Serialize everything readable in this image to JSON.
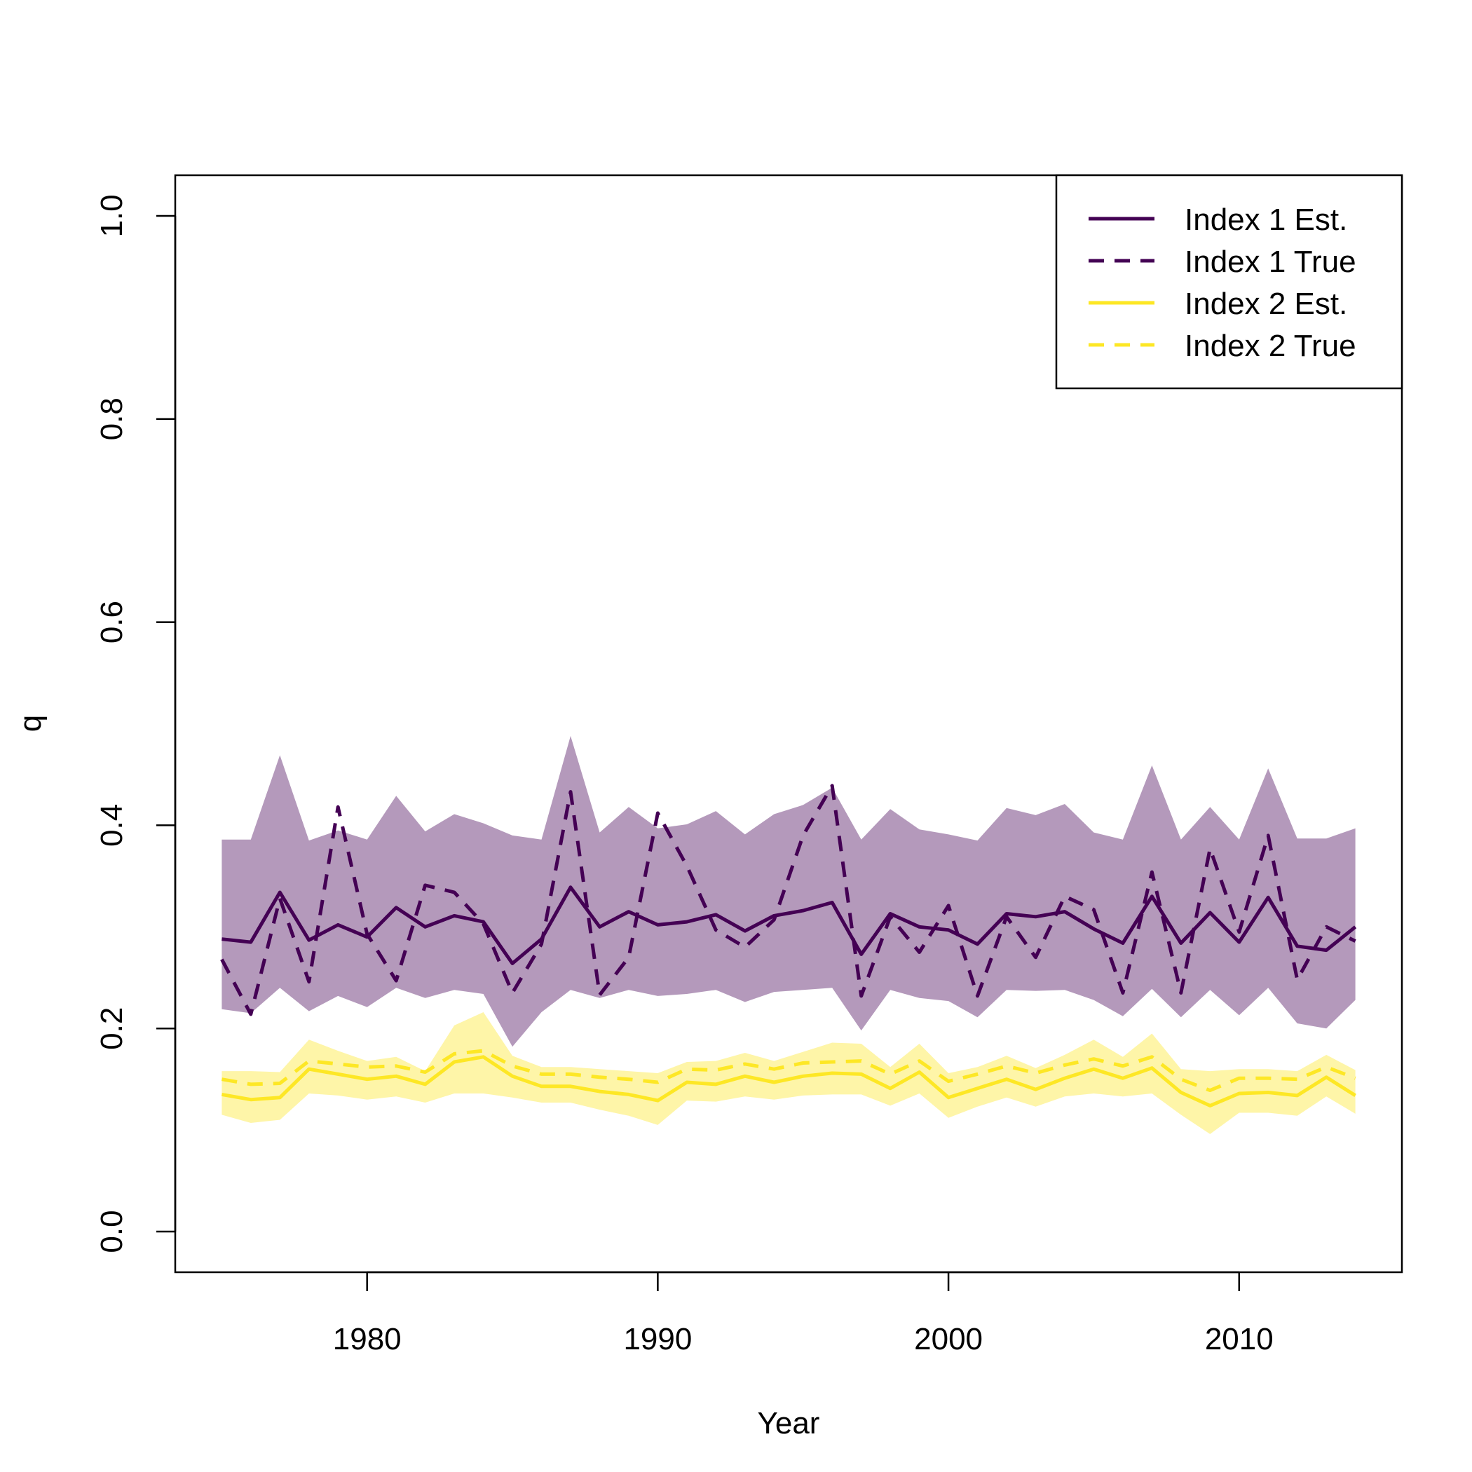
{
  "chart_data": {
    "type": "line",
    "xlabel": "Year",
    "ylabel": "q",
    "xlim": [
      1973.4,
      2015.6
    ],
    "ylim": [
      -0.04,
      1.04
    ],
    "x_ticks": [
      "1980",
      "1990",
      "2000",
      "2010"
    ],
    "y_ticks": [
      "0.0",
      "0.2",
      "0.4",
      "0.6",
      "0.8",
      "1.0"
    ],
    "legend_position": "top-right",
    "x": [
      1975,
      1976,
      1977,
      1978,
      1979,
      1980,
      1981,
      1982,
      1983,
      1984,
      1985,
      1986,
      1987,
      1988,
      1989,
      1990,
      1991,
      1992,
      1993,
      1994,
      1995,
      1996,
      1997,
      1998,
      1999,
      2000,
      2001,
      2002,
      2003,
      2004,
      2005,
      2006,
      2007,
      2008,
      2009,
      2010,
      2011,
      2012,
      2013,
      2014
    ],
    "series": [
      {
        "name": "Index 1 Est.",
        "color": "#440154",
        "dash": "solid",
        "values": [
          0.288,
          0.285,
          0.334,
          0.287,
          0.302,
          0.29,
          0.319,
          0.3,
          0.311,
          0.305,
          0.264,
          0.288,
          0.339,
          0.3,
          0.315,
          0.302,
          0.305,
          0.312,
          0.296,
          0.311,
          0.316,
          0.324,
          0.273,
          0.313,
          0.3,
          0.297,
          0.283,
          0.313,
          0.31,
          0.315,
          0.298,
          0.284,
          0.33,
          0.284,
          0.314,
          0.285,
          0.329,
          0.281,
          0.277,
          0.3
        ]
      },
      {
        "name": "Index 1 True",
        "color": "#440154",
        "dash": "dashed",
        "values": [
          0.268,
          0.214,
          0.328,
          0.246,
          0.418,
          0.293,
          0.247,
          0.341,
          0.334,
          0.303,
          0.235,
          0.283,
          0.433,
          0.233,
          0.27,
          0.412,
          0.36,
          0.297,
          0.28,
          0.307,
          0.39,
          0.439,
          0.232,
          0.31,
          0.275,
          0.321,
          0.232,
          0.31,
          0.27,
          0.33,
          0.317,
          0.235,
          0.354,
          0.235,
          0.377,
          0.295,
          0.39,
          0.248,
          0.3,
          0.286
        ]
      },
      {
        "name": "Index 2 Est.",
        "color": "#FDE725",
        "dash": "solid",
        "values": [
          0.135,
          0.13,
          0.132,
          0.16,
          0.155,
          0.15,
          0.153,
          0.145,
          0.167,
          0.172,
          0.153,
          0.143,
          0.143,
          0.138,
          0.135,
          0.129,
          0.147,
          0.145,
          0.153,
          0.147,
          0.153,
          0.156,
          0.155,
          0.141,
          0.157,
          0.132,
          0.141,
          0.15,
          0.14,
          0.151,
          0.16,
          0.151,
          0.161,
          0.137,
          0.124,
          0.136,
          0.137,
          0.134,
          0.152,
          0.134
        ]
      },
      {
        "name": "Index 2 True",
        "color": "#FDE725",
        "dash": "dashed",
        "values": [
          0.15,
          0.145,
          0.146,
          0.168,
          0.165,
          0.162,
          0.163,
          0.157,
          0.175,
          0.178,
          0.163,
          0.155,
          0.155,
          0.152,
          0.15,
          0.147,
          0.16,
          0.159,
          0.165,
          0.16,
          0.166,
          0.167,
          0.168,
          0.155,
          0.168,
          0.148,
          0.155,
          0.163,
          0.156,
          0.164,
          0.17,
          0.163,
          0.172,
          0.15,
          0.139,
          0.151,
          0.151,
          0.15,
          0.162,
          0.151
        ]
      }
    ],
    "bands": [
      {
        "color": "#440154",
        "opacity": 0.4,
        "upper": [
          0.386,
          0.386,
          0.469,
          0.385,
          0.395,
          0.386,
          0.429,
          0.394,
          0.411,
          0.402,
          0.39,
          0.386,
          0.488,
          0.393,
          0.418,
          0.397,
          0.401,
          0.414,
          0.391,
          0.411,
          0.42,
          0.437,
          0.386,
          0.416,
          0.396,
          0.391,
          0.385,
          0.417,
          0.41,
          0.421,
          0.393,
          0.386,
          0.459,
          0.386,
          0.418,
          0.386,
          0.456,
          0.387,
          0.387,
          0.397
        ],
        "lower": [
          0.219,
          0.215,
          0.24,
          0.217,
          0.232,
          0.221,
          0.24,
          0.23,
          0.238,
          0.234,
          0.182,
          0.216,
          0.238,
          0.23,
          0.238,
          0.232,
          0.234,
          0.238,
          0.226,
          0.236,
          0.238,
          0.24,
          0.198,
          0.238,
          0.23,
          0.227,
          0.211,
          0.238,
          0.237,
          0.238,
          0.228,
          0.212,
          0.239,
          0.211,
          0.238,
          0.213,
          0.24,
          0.205,
          0.2,
          0.228
        ]
      },
      {
        "color": "#FDE725",
        "opacity": 0.4,
        "upper": [
          0.158,
          0.158,
          0.157,
          0.189,
          0.178,
          0.168,
          0.172,
          0.158,
          0.203,
          0.216,
          0.173,
          0.162,
          0.162,
          0.16,
          0.158,
          0.156,
          0.167,
          0.168,
          0.176,
          0.168,
          0.177,
          0.186,
          0.185,
          0.162,
          0.185,
          0.156,
          0.162,
          0.173,
          0.161,
          0.174,
          0.189,
          0.172,
          0.195,
          0.16,
          0.158,
          0.16,
          0.16,
          0.158,
          0.174,
          0.159
        ],
        "lower": [
          0.115,
          0.107,
          0.11,
          0.136,
          0.134,
          0.13,
          0.133,
          0.127,
          0.136,
          0.136,
          0.132,
          0.127,
          0.127,
          0.12,
          0.114,
          0.105,
          0.129,
          0.128,
          0.133,
          0.13,
          0.134,
          0.135,
          0.135,
          0.124,
          0.136,
          0.112,
          0.123,
          0.132,
          0.123,
          0.133,
          0.136,
          0.133,
          0.136,
          0.115,
          0.096,
          0.117,
          0.117,
          0.114,
          0.133,
          0.116
        ]
      }
    ]
  }
}
